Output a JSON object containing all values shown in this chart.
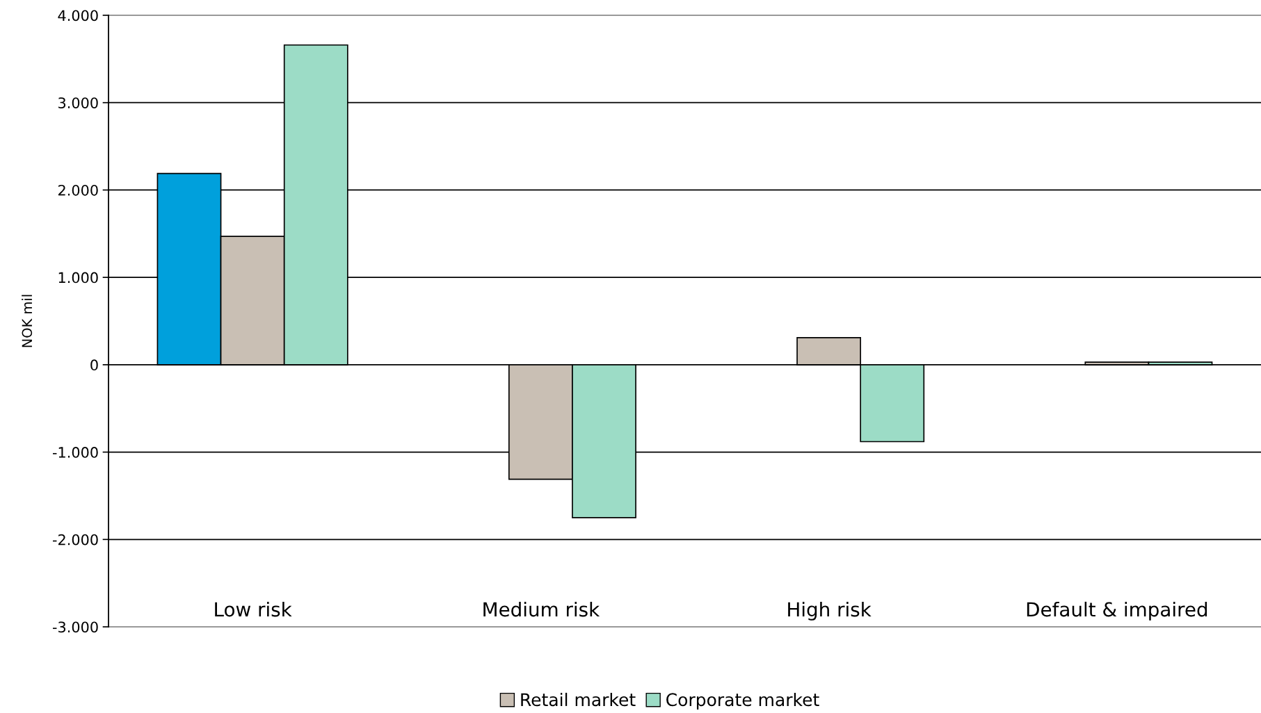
{
  "chart_data": {
    "type": "bar",
    "ylabel": "NOK mil",
    "categories": [
      "Low risk",
      "Medium risk",
      "High risk",
      "Default & impaired"
    ],
    "series": [
      {
        "color": "#00a0dc",
        "values": [
          2190,
          null,
          null,
          null
        ]
      },
      {
        "name": "Retail market",
        "color": "#c9bfb4",
        "values": [
          1470,
          -1310,
          310,
          30
        ]
      },
      {
        "name": "Corporate market",
        "color": "#9cdcc6",
        "values": [
          3660,
          -1750,
          -880,
          30
        ]
      }
    ],
    "ylim": [
      -3000,
      4000
    ],
    "yticks": [
      {
        "value": -3000,
        "label": "-3.000"
      },
      {
        "value": -2000,
        "label": "-2.000"
      },
      {
        "value": -1000,
        "label": "-1.000"
      },
      0,
      {
        "value": 1000,
        "label": "1.000"
      },
      {
        "value": 2000,
        "label": "2.000"
      },
      {
        "value": 3000,
        "label": "3.000"
      },
      {
        "value": 4000,
        "label": "4.000"
      }
    ],
    "grid": "y",
    "legend": "bottom"
  }
}
